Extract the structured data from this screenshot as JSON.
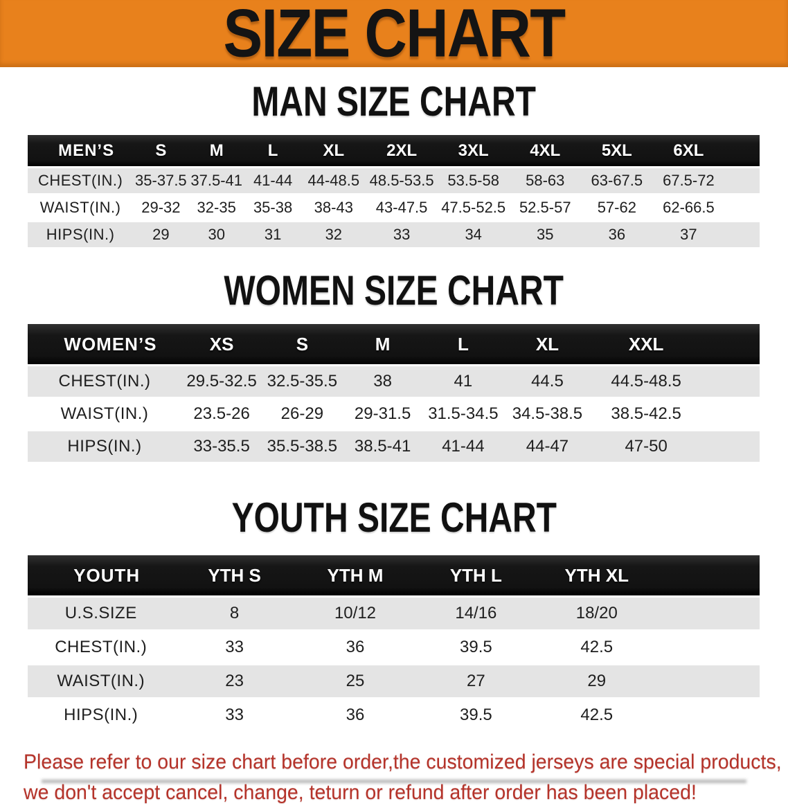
{
  "banner": {
    "title": "SIZE CHART"
  },
  "colors": {
    "banner_orange": "#E8811C",
    "header_black": "#161616",
    "row_gray": "#E4E4E4",
    "footer_red": "#B5332A"
  },
  "sections": [
    {
      "title": "MAN SIZE CHART",
      "header_label": "MEN’S",
      "columns": [
        "S",
        "M",
        "L",
        "XL",
        "2XL",
        "3XL",
        "4XL",
        "5XL",
        "6XL"
      ],
      "rows": [
        {
          "label": "CHEST(IN.)",
          "values": [
            "35-37.5",
            "37.5-41",
            "41-44",
            "44-48.5",
            "48.5-53.5",
            "53.5-58",
            "58-63",
            "63-67.5",
            "67.5-72"
          ]
        },
        {
          "label": "WAIST(IN.)",
          "values": [
            "29-32",
            "32-35",
            "35-38",
            "38-43",
            "43-47.5",
            "47.5-52.5",
            "52.5-57",
            "57-62",
            "62-66.5"
          ]
        },
        {
          "label": "HIPS(IN.)",
          "values": [
            "29",
            "30",
            "31",
            "32",
            "33",
            "34",
            "35",
            "36",
            "37"
          ]
        }
      ]
    },
    {
      "title": "WOMEN SIZE CHART",
      "header_label": "WOMEN’S",
      "columns": [
        "XS",
        "S",
        "M",
        "L",
        "XL",
        "XXL"
      ],
      "rows": [
        {
          "label": "CHEST(IN.)",
          "values": [
            "29.5-32.5",
            "32.5-35.5",
            "38",
            "41",
            "44.5",
            "44.5-48.5"
          ]
        },
        {
          "label": "WAIST(IN.)",
          "values": [
            "23.5-26",
            "26-29",
            "29-31.5",
            "31.5-34.5",
            "34.5-38.5",
            "38.5-42.5"
          ]
        },
        {
          "label": "HIPS(IN.)",
          "values": [
            "33-35.5",
            "35.5-38.5",
            "38.5-41",
            "41-44",
            "44-47",
            "47-50"
          ]
        }
      ]
    },
    {
      "title": "YOUTH SIZE CHART",
      "header_label": "YOUTH",
      "columns": [
        "YTH S",
        "YTH M",
        "YTH L",
        "YTH XL"
      ],
      "rows": [
        {
          "label": "U.S.SIZE",
          "values": [
            "8",
            "10/12",
            "14/16",
            "18/20"
          ]
        },
        {
          "label": "CHEST(IN.)",
          "values": [
            "33",
            "36",
            "39.5",
            "42.5"
          ]
        },
        {
          "label": "WAIST(IN.)",
          "values": [
            "23",
            "25",
            "27",
            "29"
          ]
        },
        {
          "label": "HIPS(IN.)",
          "values": [
            "33",
            "36",
            "39.5",
            "42.5"
          ]
        }
      ]
    }
  ],
  "footer": {
    "line1": "Please refer to our size chart before order,the customized jerseys are special products,",
    "line2": "we don't accept cancel, change, teturn or refund after order has been placed!"
  }
}
